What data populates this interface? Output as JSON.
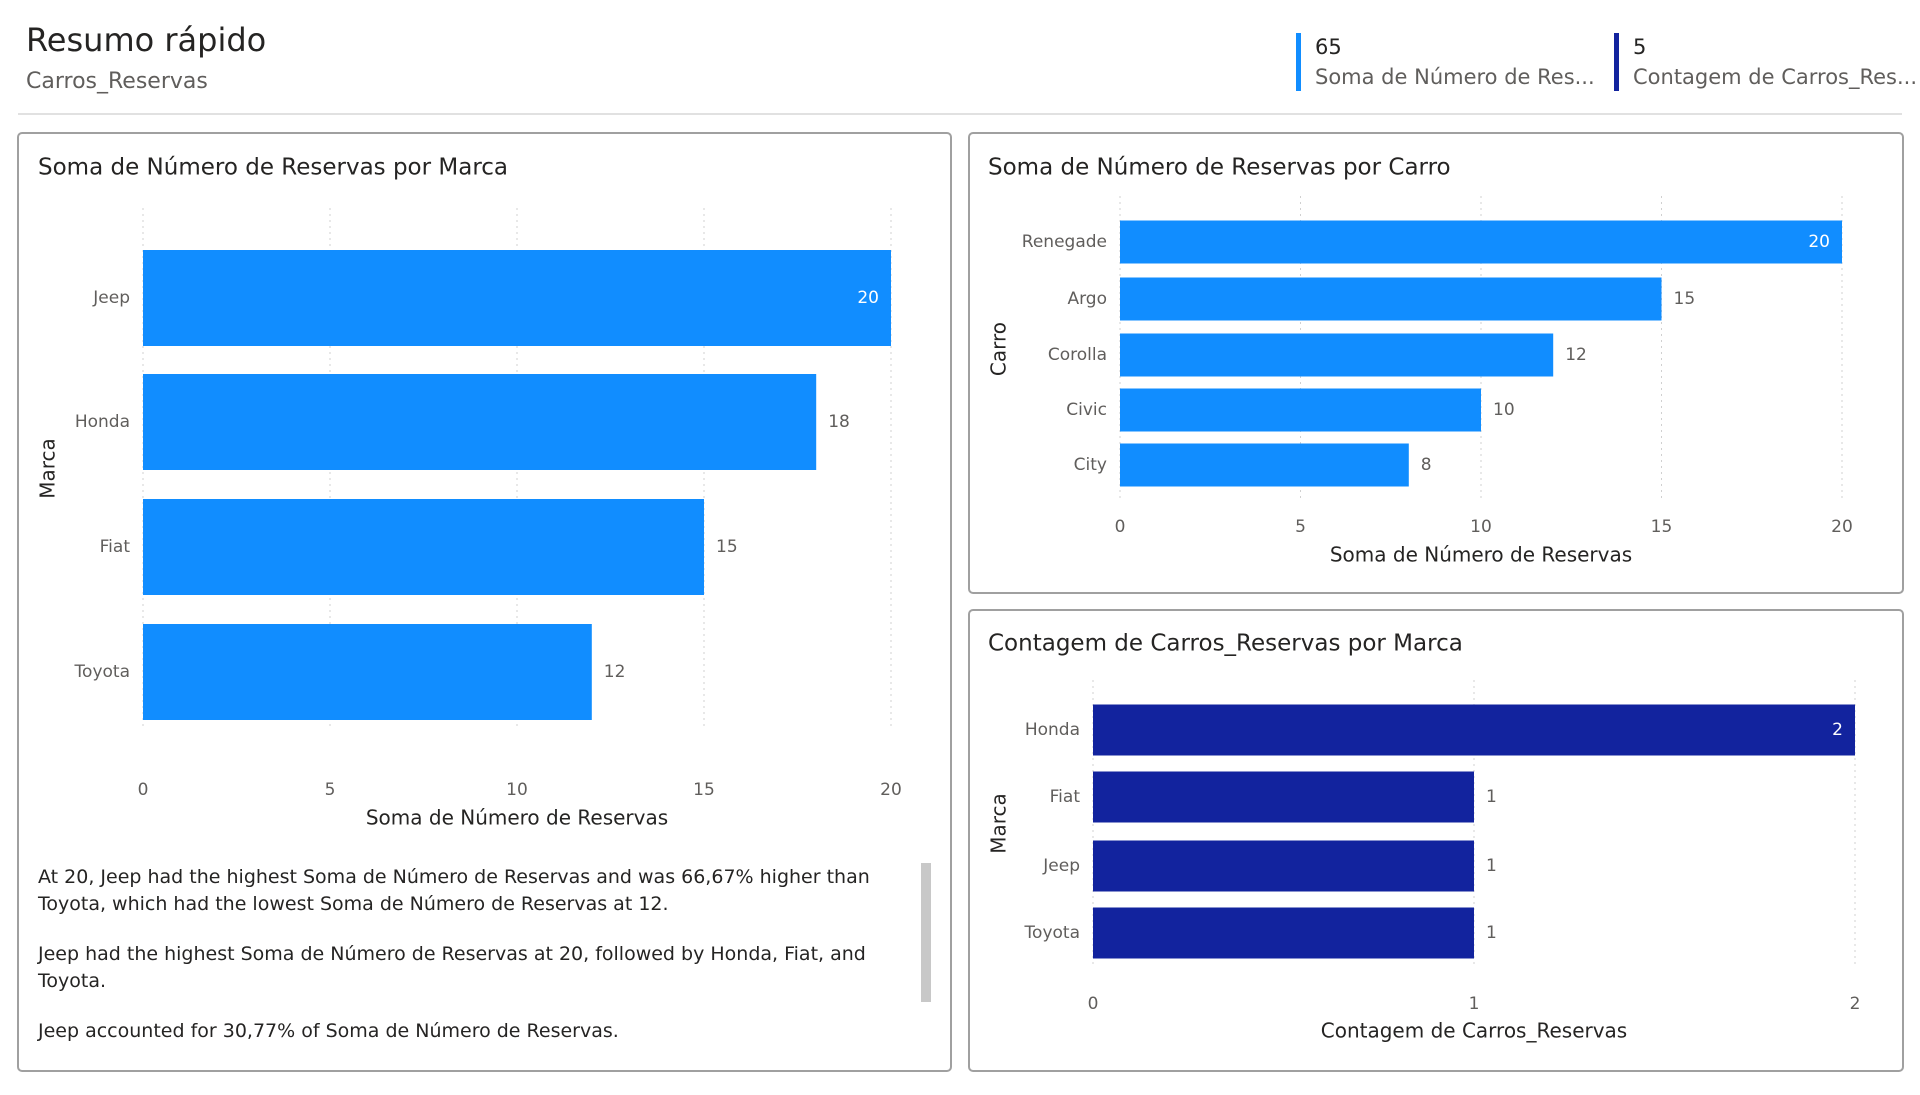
{
  "header": {
    "title": "Resumo rápido",
    "subtitle": "Carros_Reservas"
  },
  "kpis": [
    {
      "value": 65,
      "label": "Soma de Número de Res...",
      "color": "#118DFF"
    },
    {
      "value": 5,
      "label": "Contagem de Carros_Res...",
      "color": "#12239E"
    }
  ],
  "chart_data": [
    {
      "type": "hbar",
      "title": "Soma de Número de Reservas por Marca",
      "x_label": "Soma de Número de Reservas",
      "y_label": "Marca",
      "categories": [
        "Jeep",
        "Honda",
        "Fiat",
        "Toyota"
      ],
      "values": [
        20,
        18,
        15,
        12
      ],
      "color": "#118DFF",
      "xlim": [
        0,
        20
      ],
      "xticks": [
        0,
        5,
        10,
        15,
        20
      ],
      "grid": true
    },
    {
      "type": "hbar",
      "title": "Soma de Número de Reservas por Carro",
      "x_label": "Soma de Número de Reservas",
      "y_label": "Carro",
      "categories": [
        "Renegade",
        "Argo",
        "Corolla",
        "Civic",
        "City"
      ],
      "values": [
        20,
        15,
        12,
        10,
        8
      ],
      "color": "#118DFF",
      "xlim": [
        0,
        20
      ],
      "xticks": [
        0,
        5,
        10,
        15,
        20
      ],
      "grid": true
    },
    {
      "type": "hbar",
      "title": "Contagem de Carros_Reservas por Marca",
      "x_label": "Contagem de Carros_Reservas",
      "y_label": "Marca",
      "categories": [
        "Honda",
        "Fiat",
        "Jeep",
        "Toyota"
      ],
      "values": [
        2,
        1,
        1,
        1
      ],
      "color": "#12239E",
      "xlim": [
        0,
        2
      ],
      "xticks": [
        0,
        1,
        2
      ],
      "grid": true
    }
  ],
  "narrative": [
    "At 20, Jeep had the highest Soma de Número de Reservas and was 66,67% higher than Toyota, which had the lowest Soma de Número de Reservas at 12.",
    "Jeep had the highest Soma de Número de Reservas at 20, followed by Honda, Fiat, and Toyota.",
    "Jeep accounted for 30,77% of Soma de Número de Reservas."
  ]
}
